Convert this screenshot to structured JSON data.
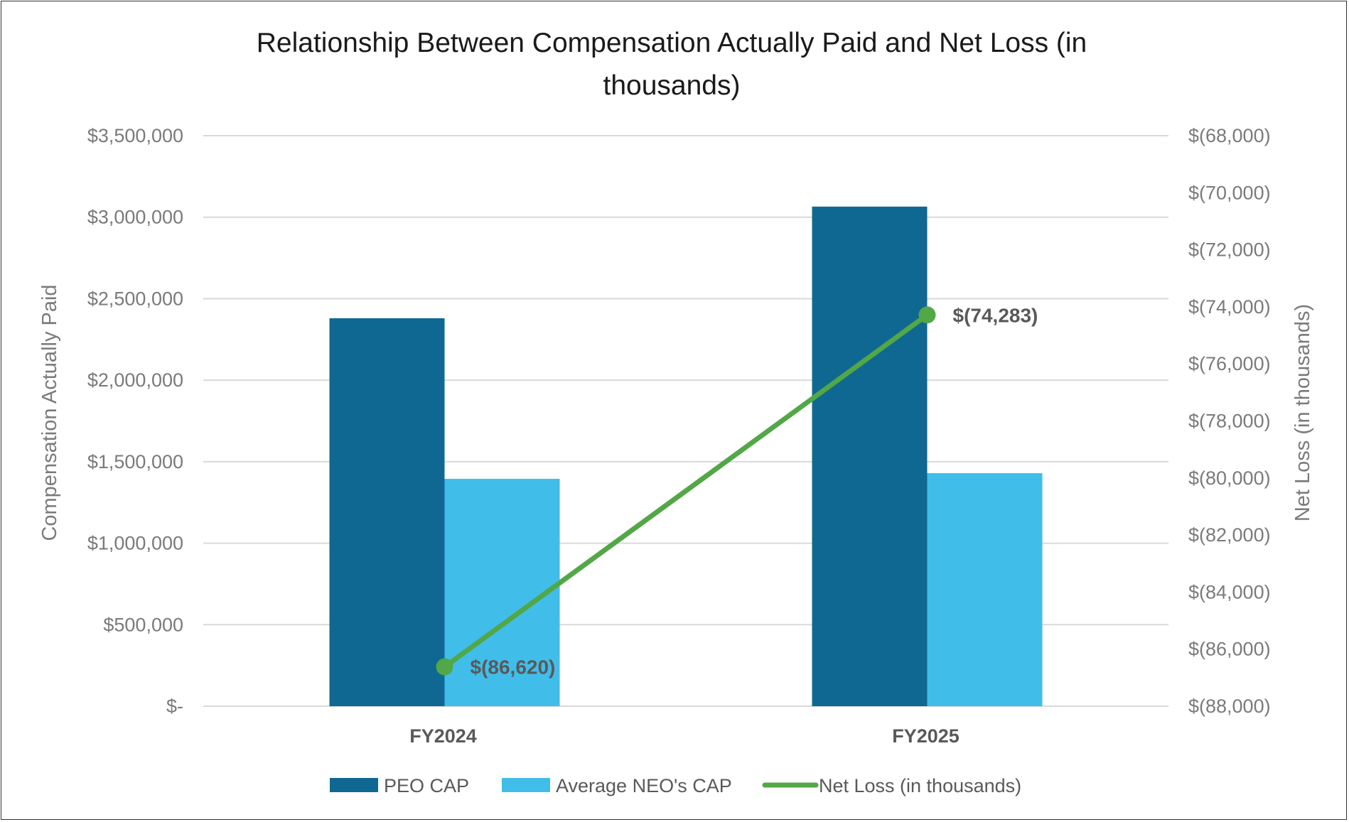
{
  "chart_data": {
    "type": "bar",
    "title_lines": [
      "Relationship Between Compensation Actually Paid and Net Loss (in",
      "thousands)"
    ],
    "categories": [
      "FY2024",
      "FY2025"
    ],
    "series": [
      {
        "name": "PEO CAP",
        "type": "bar",
        "axis": "left",
        "color": "#0f6891",
        "values": [
          2380000,
          3065000
        ]
      },
      {
        "name": "Average NEO's CAP",
        "type": "bar",
        "axis": "left",
        "color": "#41bde9",
        "values": [
          1395000,
          1430000
        ]
      },
      {
        "name": "Net Loss (in thousands)",
        "type": "line",
        "axis": "right",
        "color": "#52a746",
        "values": [
          -86620,
          -74283
        ],
        "labels": [
          "$(86,620)",
          "$(74,283)"
        ]
      }
    ],
    "y_left": {
      "label": "Compensation Actually Paid",
      "min": 0,
      "max": 3500000,
      "step": 500000,
      "ticks": [
        "$-",
        "$500,000",
        "$1,000,000",
        "$1,500,000",
        "$2,000,000",
        "$2,500,000",
        "$3,000,000",
        "$3,500,000"
      ]
    },
    "y_right": {
      "label": "Net Loss (in thousands)",
      "min": -88000,
      "max": -68000,
      "step": 2000,
      "ticks": [
        "$(88,000)",
        "$(86,000)",
        "$(84,000)",
        "$(82,000)",
        "$(80,000)",
        "$(78,000)",
        "$(76,000)",
        "$(74,000)",
        "$(72,000)",
        "$(70,000)",
        "$(68,000)"
      ]
    },
    "grid": true,
    "legend_position": "bottom"
  }
}
